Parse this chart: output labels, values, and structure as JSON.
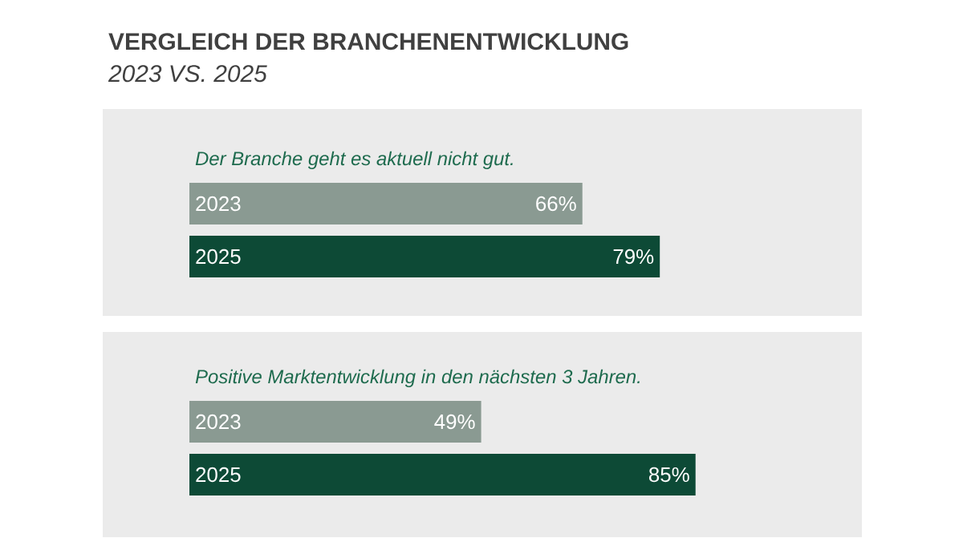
{
  "chart_data": [
    {
      "type": "bar",
      "orientation": "horizontal",
      "annotations": [
        "VERGLEICH DER BRANCHENENTWICKLUNG",
        "*2023 VS. 2025*"
      ],
      "title": "Der Branche geht es aktuell nicht gut.",
      "categories": [
        "2023",
        "2025"
      ],
      "values": [
        66,
        79
      ],
      "value_labels": [
        "66%",
        "79%"
      ],
      "colors": [
        "#8a9a92",
        "#0d4a36"
      ]
    },
    {
      "type": "bar",
      "orientation": "horizontal",
      "title": "Positive Marktentwicklung in den nächsten 3 Jahren.",
      "categories": [
        "2023",
        "2025"
      ],
      "values": [
        49,
        85
      ],
      "value_labels": [
        "49%",
        "85%"
      ],
      "colors": [
        "#8a9a92",
        "#0d4a36"
      ]
    }
  ]
}
